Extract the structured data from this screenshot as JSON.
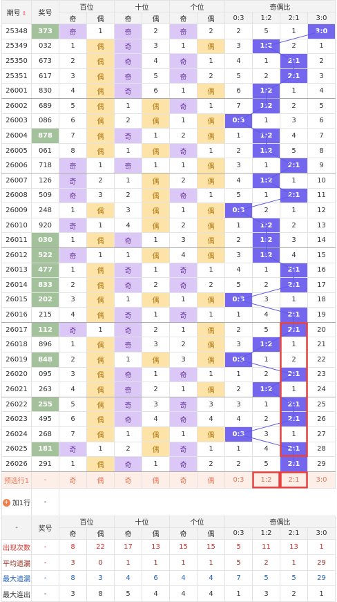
{
  "header": {
    "issue": "期号",
    "number": "奖号",
    "groups": [
      "百位",
      "十位",
      "个位",
      "奇偶比"
    ],
    "sub": [
      "奇",
      "偶",
      "奇",
      "偶",
      "奇",
      "偶",
      "0:3",
      "1:2",
      "2:1",
      "3:0"
    ]
  },
  "rows": [
    {
      "issue": "25348",
      "number": "373",
      "marked": true,
      "cells": [
        "奇",
        1,
        "奇",
        2,
        "奇",
        2,
        2,
        5,
        1,
        "3:0"
      ]
    },
    {
      "issue": "25349",
      "number": "032",
      "marked": false,
      "cells": [
        1,
        "偶",
        "奇",
        3,
        1,
        "偶",
        3,
        "1:2",
        2,
        1
      ]
    },
    {
      "issue": "25350",
      "number": "673",
      "marked": false,
      "cells": [
        2,
        "偶",
        "奇",
        4,
        "奇",
        1,
        4,
        1,
        "2:1",
        2
      ]
    },
    {
      "issue": "25351",
      "number": "617",
      "marked": false,
      "cells": [
        3,
        "偶",
        "奇",
        5,
        "奇",
        2,
        5,
        2,
        "2:1",
        3
      ]
    },
    {
      "issue": "26001",
      "number": "830",
      "marked": false,
      "cells": [
        4,
        "偶",
        "奇",
        6,
        1,
        "偶",
        6,
        "1:2",
        1,
        4
      ]
    },
    {
      "issue": "26002",
      "number": "689",
      "marked": false,
      "cells": [
        5,
        "偶",
        1,
        "偶",
        "奇",
        1,
        7,
        "1:2",
        2,
        5
      ]
    },
    {
      "issue": "26003",
      "number": "086",
      "marked": false,
      "cells": [
        6,
        "偶",
        2,
        "偶",
        1,
        "偶",
        "0:3",
        1,
        3,
        6
      ]
    },
    {
      "issue": "26004",
      "number": "878",
      "marked": true,
      "cells": [
        7,
        "偶",
        "奇",
        1,
        2,
        "偶",
        1,
        "1:2",
        4,
        7
      ]
    },
    {
      "issue": "26005",
      "number": "061",
      "marked": false,
      "cells": [
        8,
        "偶",
        1,
        "偶",
        "奇",
        1,
        2,
        "1:2",
        5,
        8
      ]
    },
    {
      "issue": "26006",
      "number": "718",
      "marked": false,
      "cells": [
        "奇",
        1,
        "奇",
        1,
        1,
        "偶",
        3,
        1,
        "2:1",
        9
      ]
    },
    {
      "issue": "26007",
      "number": "126",
      "marked": false,
      "cells": [
        "奇",
        2,
        1,
        "偶",
        2,
        "偶",
        4,
        "1:2",
        1,
        10
      ]
    },
    {
      "issue": "26008",
      "number": "509",
      "marked": false,
      "cells": [
        "奇",
        3,
        2,
        "偶",
        "奇",
        1,
        5,
        1,
        "2:1",
        11
      ]
    },
    {
      "issue": "26009",
      "number": "248",
      "marked": false,
      "cells": [
        1,
        "偶",
        3,
        "偶",
        1,
        "偶",
        "0:3",
        2,
        1,
        12
      ]
    },
    {
      "issue": "26010",
      "number": "920",
      "marked": false,
      "cells": [
        "奇",
        1,
        4,
        "偶",
        2,
        "偶",
        1,
        "1:2",
        2,
        13
      ]
    },
    {
      "issue": "26011",
      "number": "030",
      "marked": true,
      "cells": [
        1,
        "偶",
        "奇",
        1,
        3,
        "偶",
        2,
        "1:2",
        3,
        14
      ]
    },
    {
      "issue": "26012",
      "number": "522",
      "marked": true,
      "cells": [
        "奇",
        1,
        1,
        "偶",
        4,
        "偶",
        3,
        "1:2",
        4,
        15
      ]
    },
    {
      "issue": "26013",
      "number": "477",
      "marked": true,
      "cells": [
        1,
        "偶",
        "奇",
        1,
        "奇",
        1,
        4,
        1,
        "2:1",
        16
      ]
    },
    {
      "issue": "26014",
      "number": "833",
      "marked": true,
      "cells": [
        2,
        "偶",
        "奇",
        2,
        "奇",
        2,
        5,
        2,
        "2:1",
        17
      ]
    },
    {
      "issue": "26015",
      "number": "202",
      "marked": true,
      "cells": [
        3,
        "偶",
        1,
        "偶",
        1,
        "偶",
        "0:3",
        3,
        1,
        18
      ]
    },
    {
      "issue": "26016",
      "number": "215",
      "marked": false,
      "cells": [
        4,
        "偶",
        "奇",
        1,
        "奇",
        1,
        1,
        4,
        "2:1",
        19
      ]
    },
    {
      "issue": "26017",
      "number": "112",
      "marked": true,
      "cells": [
        "奇",
        1,
        "奇",
        2,
        1,
        "偶",
        2,
        5,
        "2:1",
        20
      ]
    },
    {
      "issue": "26018",
      "number": "896",
      "marked": false,
      "cells": [
        1,
        "偶",
        "奇",
        3,
        2,
        "偶",
        3,
        "1:2",
        1,
        21
      ]
    },
    {
      "issue": "26019",
      "number": "848",
      "marked": true,
      "cells": [
        2,
        "偶",
        1,
        "偶",
        3,
        "偶",
        "0:3",
        1,
        2,
        22
      ]
    },
    {
      "issue": "26020",
      "number": "095",
      "marked": false,
      "cells": [
        3,
        "偶",
        "奇",
        1,
        "奇",
        1,
        1,
        2,
        "2:1",
        23
      ]
    },
    {
      "issue": "26021",
      "number": "263",
      "marked": false,
      "cells": [
        4,
        "偶",
        "奇",
        2,
        1,
        "偶",
        2,
        "1:2",
        1,
        24
      ]
    },
    {
      "issue": "26022",
      "number": "255",
      "marked": true,
      "cells": [
        5,
        "偶",
        "奇",
        3,
        "奇",
        3,
        3,
        1,
        "2:1",
        25
      ]
    },
    {
      "issue": "26023",
      "number": "495",
      "marked": false,
      "cells": [
        6,
        "偶",
        "奇",
        4,
        "奇",
        4,
        4,
        2,
        "2:1",
        26
      ]
    },
    {
      "issue": "26024",
      "number": "268",
      "marked": false,
      "cells": [
        7,
        "偶",
        1,
        "偶",
        1,
        "偶",
        "0:3",
        3,
        1,
        27
      ]
    },
    {
      "issue": "26025",
      "number": "181",
      "marked": true,
      "cells": [
        "奇",
        1,
        2,
        "偶",
        "奇",
        1,
        1,
        4,
        "2:1",
        28
      ]
    },
    {
      "issue": "26026",
      "number": "291",
      "marked": false,
      "cells": [
        1,
        "偶",
        "奇",
        1,
        "奇",
        2,
        2,
        5,
        "2:1",
        29
      ]
    }
  ],
  "preselect": {
    "label": "预选行1",
    "number": "-",
    "cells": [
      "奇",
      "偶",
      "奇",
      "偶",
      "奇",
      "偶",
      "0:3",
      "1:2",
      "2:1",
      "3:0"
    ]
  },
  "add_row": {
    "label": "加1行",
    "value": "-"
  },
  "stats": {
    "header": {
      "first": "-",
      "number": "奖号",
      "groups": [
        "百位",
        "十位",
        "个位",
        "奇偶比"
      ],
      "sub": [
        "奇",
        "偶",
        "奇",
        "偶",
        "奇",
        "偶",
        "0:3",
        "1:2",
        "2:1",
        "3:0"
      ]
    },
    "rows": [
      {
        "label": "出现次数",
        "number": "-",
        "color": "#e0302b",
        "values": [
          8,
          22,
          17,
          13,
          15,
          15,
          5,
          11,
          13,
          1
        ]
      },
      {
        "label": "平均遗漏",
        "number": "-",
        "color": "#9b2d1f",
        "values": [
          3,
          0,
          1,
          1,
          1,
          1,
          5,
          2,
          1,
          29
        ]
      },
      {
        "label": "最大遗漏",
        "number": "-",
        "color": "#1f5fbf",
        "values": [
          8,
          3,
          4,
          6,
          4,
          4,
          7,
          5,
          5,
          29
        ]
      },
      {
        "label": "最大连出",
        "number": "-",
        "color": "#333333",
        "values": [
          3,
          8,
          5,
          4,
          4,
          4,
          1,
          3,
          2,
          1
        ]
      }
    ]
  }
}
